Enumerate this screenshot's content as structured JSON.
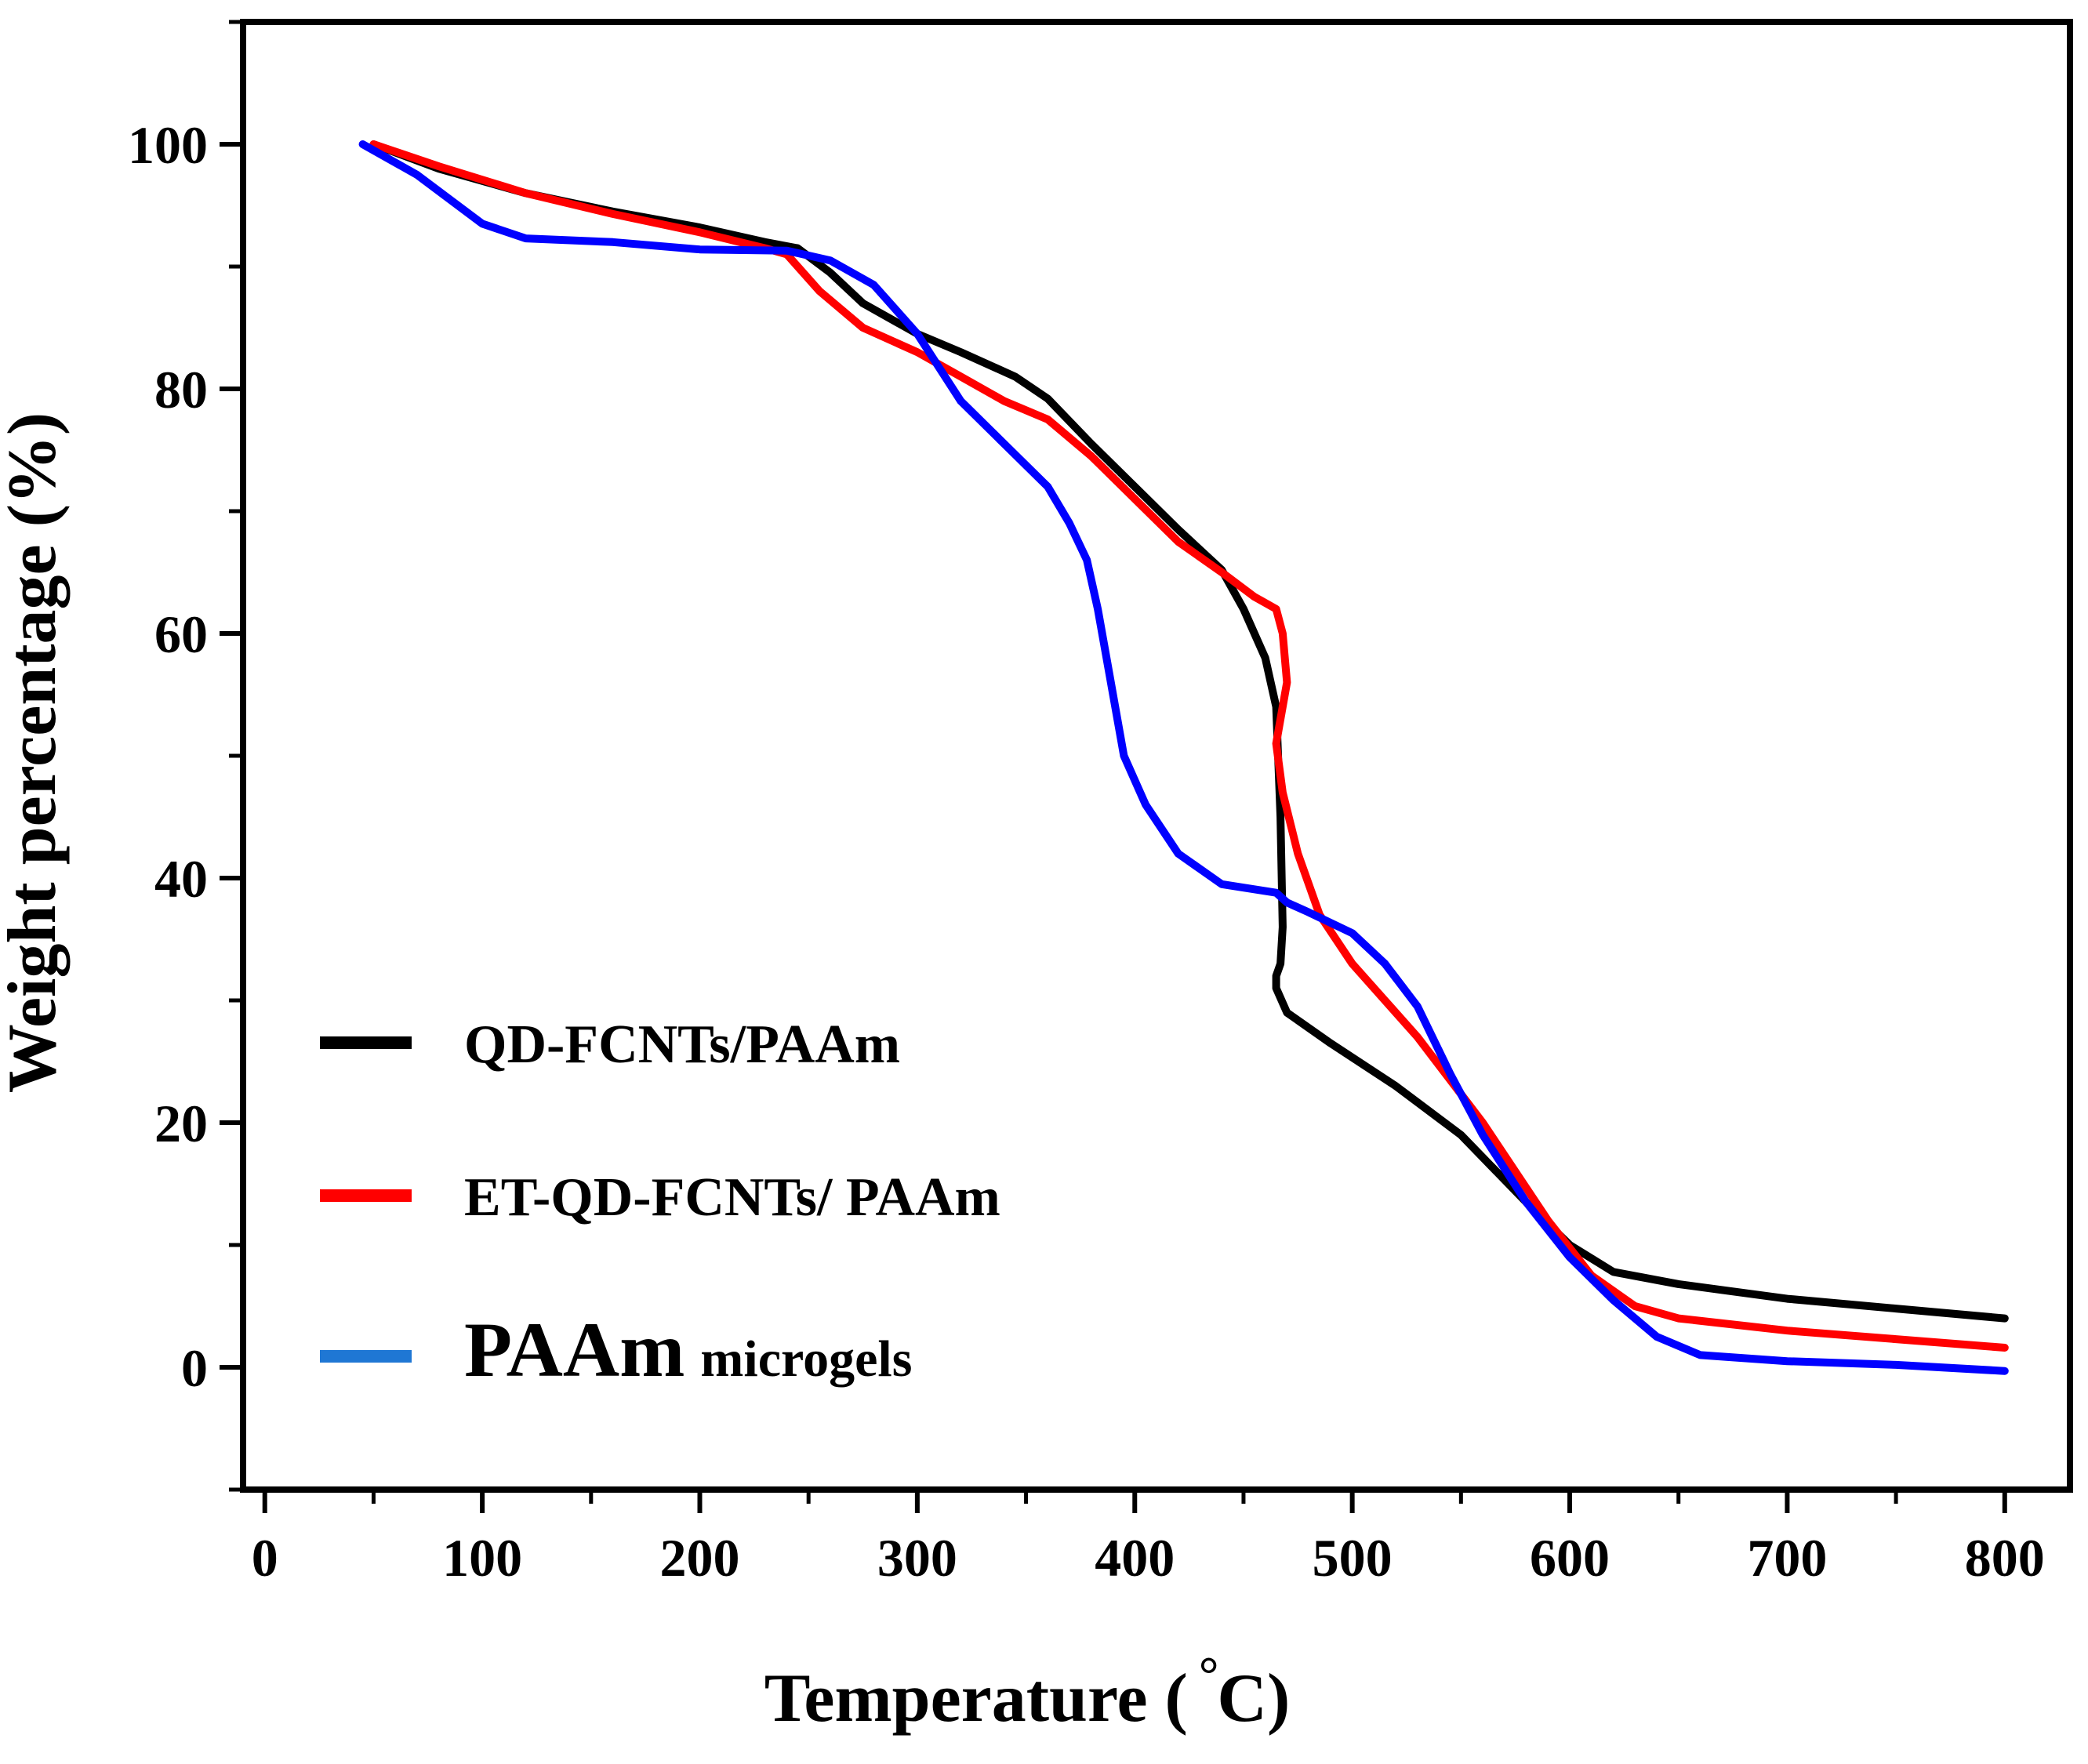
{
  "chart_data": {
    "type": "line",
    "title": "",
    "xlabel": "Temperature ( °C)",
    "xlabel_main": "Temperature (",
    "xlabel_degree": "°",
    "xlabel_unit": "C)",
    "ylabel": "Weight percentage (%)",
    "xlim": [
      -10,
      830
    ],
    "ylim": [
      -10,
      110
    ],
    "x_ticks": [
      0,
      100,
      200,
      300,
      400,
      500,
      600,
      700,
      800
    ],
    "y_ticks": [
      0,
      20,
      40,
      60,
      80,
      100
    ],
    "legend_position": "lower-left",
    "series": [
      {
        "name": "QD-FCNTs/PAAm",
        "color": "#000000",
        "points": [
          [
            50,
            100
          ],
          [
            80,
            98
          ],
          [
            120,
            96
          ],
          [
            160,
            94.5
          ],
          [
            200,
            93.2
          ],
          [
            230,
            92
          ],
          [
            245,
            91.5
          ],
          [
            260,
            89.5
          ],
          [
            275,
            87
          ],
          [
            300,
            84.5
          ],
          [
            320,
            83
          ],
          [
            345,
            81
          ],
          [
            360,
            79.2
          ],
          [
            380,
            75.5
          ],
          [
            400,
            72
          ],
          [
            420,
            68.5
          ],
          [
            440,
            65.2
          ],
          [
            450,
            62
          ],
          [
            460,
            58
          ],
          [
            465,
            54
          ],
          [
            467,
            45
          ],
          [
            468,
            36
          ],
          [
            467,
            33
          ],
          [
            465,
            32
          ],
          [
            465,
            31
          ],
          [
            470,
            29
          ],
          [
            490,
            26.5
          ],
          [
            520,
            23
          ],
          [
            550,
            19
          ],
          [
            580,
            13.5
          ],
          [
            600,
            10
          ],
          [
            620,
            7.8
          ],
          [
            650,
            6.8
          ],
          [
            700,
            5.6
          ],
          [
            750,
            4.8
          ],
          [
            800,
            4
          ]
        ]
      },
      {
        "name": "ET-QD-FCNTs/ PAAm",
        "color": "#ff0000",
        "points": [
          [
            50,
            100
          ],
          [
            80,
            98.2
          ],
          [
            120,
            96
          ],
          [
            160,
            94.3
          ],
          [
            200,
            92.8
          ],
          [
            230,
            91.5
          ],
          [
            240,
            91
          ],
          [
            255,
            88
          ],
          [
            275,
            85
          ],
          [
            300,
            83
          ],
          [
            320,
            81
          ],
          [
            340,
            79
          ],
          [
            360,
            77.5
          ],
          [
            380,
            74.5
          ],
          [
            400,
            71
          ],
          [
            420,
            67.5
          ],
          [
            440,
            65
          ],
          [
            455,
            63
          ],
          [
            465,
            62
          ],
          [
            468,
            60
          ],
          [
            470,
            56
          ],
          [
            467,
            53
          ],
          [
            465,
            51
          ],
          [
            468,
            47
          ],
          [
            475,
            42
          ],
          [
            485,
            37
          ],
          [
            500,
            33
          ],
          [
            530,
            27
          ],
          [
            560,
            20
          ],
          [
            590,
            12
          ],
          [
            610,
            7.5
          ],
          [
            630,
            5
          ],
          [
            650,
            4
          ],
          [
            700,
            3
          ],
          [
            750,
            2.3
          ],
          [
            800,
            1.6
          ]
        ]
      },
      {
        "name": "PAAm microgels",
        "legend_main": "PAAm",
        "legend_sub": "microgels",
        "color": "#0000ff",
        "legend_color": "#1f77d4",
        "points": [
          [
            45,
            100
          ],
          [
            70,
            97.5
          ],
          [
            100,
            93.5
          ],
          [
            120,
            92.3
          ],
          [
            160,
            92
          ],
          [
            200,
            91.4
          ],
          [
            240,
            91.3
          ],
          [
            260,
            90.5
          ],
          [
            280,
            88.5
          ],
          [
            300,
            84.5
          ],
          [
            320,
            79
          ],
          [
            340,
            75.5
          ],
          [
            360,
            72
          ],
          [
            370,
            69
          ],
          [
            378,
            66
          ],
          [
            383,
            62
          ],
          [
            388,
            57
          ],
          [
            395,
            50
          ],
          [
            405,
            46
          ],
          [
            420,
            42
          ],
          [
            440,
            39.5
          ],
          [
            465,
            38.8
          ],
          [
            470,
            38
          ],
          [
            480,
            37.2
          ],
          [
            500,
            35.5
          ],
          [
            515,
            33
          ],
          [
            530,
            29.5
          ],
          [
            545,
            24
          ],
          [
            560,
            19
          ],
          [
            580,
            13.5
          ],
          [
            600,
            9
          ],
          [
            620,
            5.5
          ],
          [
            640,
            2.5
          ],
          [
            660,
            1
          ],
          [
            700,
            0.5
          ],
          [
            750,
            0.2
          ],
          [
            800,
            -0.3
          ]
        ]
      }
    ]
  }
}
